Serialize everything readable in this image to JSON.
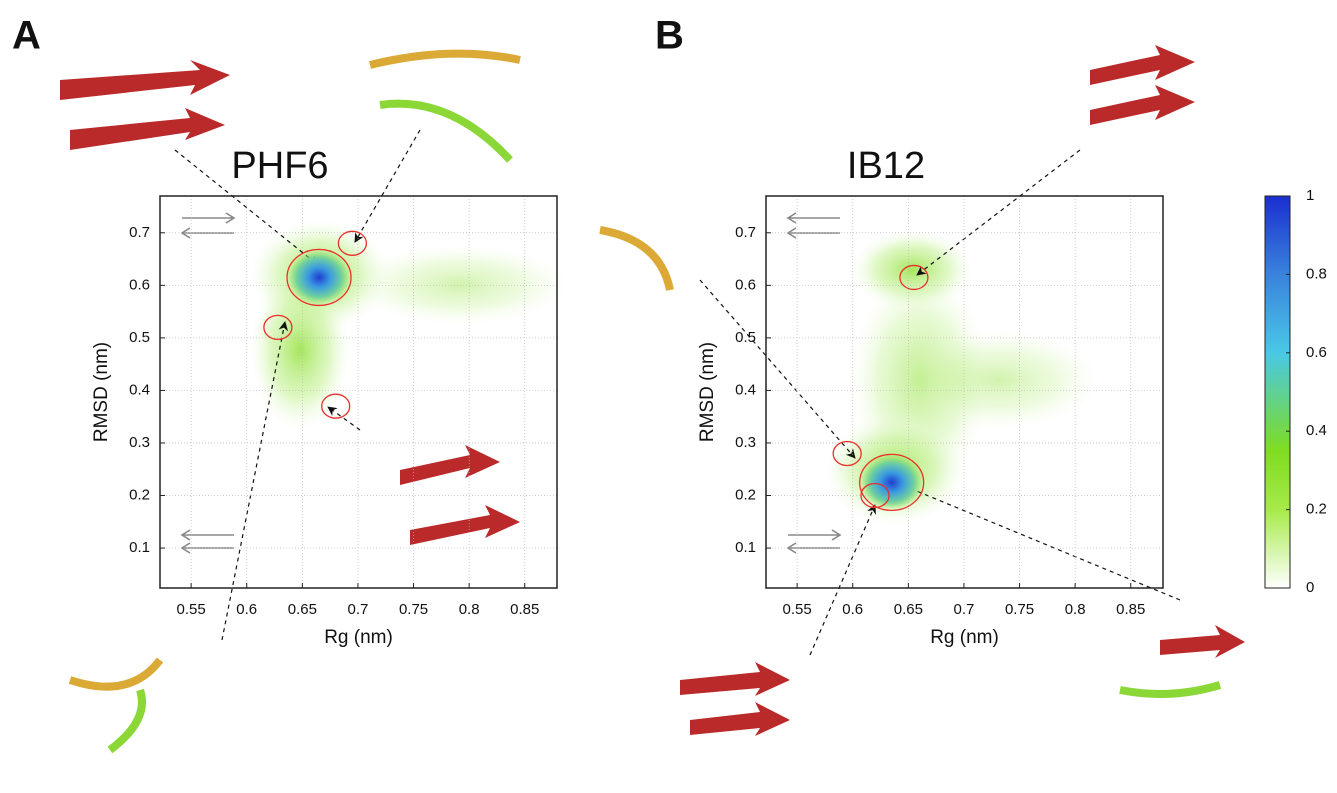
{
  "chart_data": [
    {
      "type": "contour",
      "panel_label": "A",
      "title": "PHF6",
      "x_label": "Rg (nm)",
      "y_label": "RMSD (nm)",
      "x": [
        0.665,
        0.695,
        0.628,
        0.68
      ],
      "y": [
        0.615,
        0.68,
        0.52,
        0.37
      ],
      "xlim": [
        0.522,
        0.879
      ],
      "ylim": [
        0.024,
        0.77
      ],
      "xticks": [
        0.55,
        0.6,
        0.65,
        0.7,
        0.75,
        0.8,
        0.85
      ],
      "yticks": [
        0.1,
        0.2,
        0.3,
        0.4,
        0.5,
        0.6,
        0.7
      ],
      "grid": true
    },
    {
      "type": "contour",
      "panel_label": "B",
      "title": "IB12",
      "x_label": "Rg (nm)",
      "y_label": "RMSD (nm)",
      "x": [
        0.655,
        0.595,
        0.635,
        0.62
      ],
      "y": [
        0.615,
        0.28,
        0.225,
        0.2
      ],
      "xlim": [
        0.522,
        0.879
      ],
      "ylim": [
        0.024,
        0.77
      ],
      "xticks": [
        0.55,
        0.6,
        0.65,
        0.7,
        0.75,
        0.8,
        0.85
      ],
      "yticks": [
        0.1,
        0.2,
        0.3,
        0.4,
        0.5,
        0.6,
        0.7
      ],
      "grid": true,
      "zlim": [
        0,
        1
      ],
      "zticks": [
        0,
        0.2,
        0.4,
        0.6,
        0.8,
        1
      ]
    }
  ]
}
